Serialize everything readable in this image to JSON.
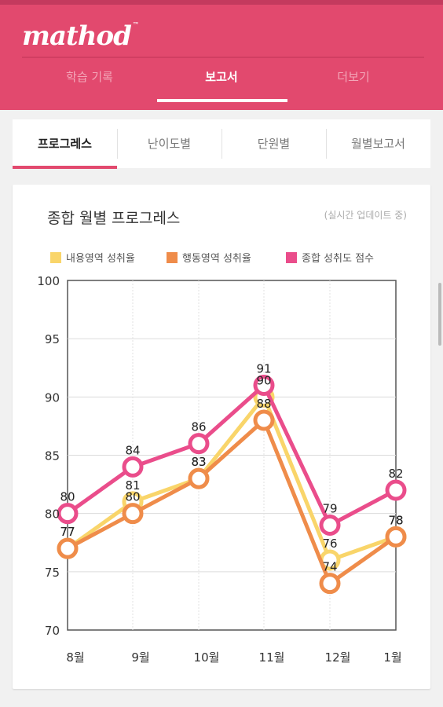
{
  "app": {
    "logo": "mathod",
    "logo_mark": "™"
  },
  "main_tabs": [
    {
      "label": "학습 기록",
      "active": false
    },
    {
      "label": "보고서",
      "active": true
    },
    {
      "label": "더보기",
      "active": false
    }
  ],
  "sub_tabs": [
    {
      "label": "프로그레스",
      "active": true
    },
    {
      "label": "난이도별",
      "active": false
    },
    {
      "label": "단원별",
      "active": false
    },
    {
      "label": "월별보고서",
      "active": false
    }
  ],
  "card": {
    "title": "종합 월별 프로그레스",
    "note": "(실시간 업데이트 중)"
  },
  "colors": {
    "header": "#e2496e",
    "yellow": "#f9d56a",
    "orange": "#ef8c4a",
    "pink": "#ea4d8b"
  },
  "chart_data": {
    "type": "line",
    "categories": [
      "8월",
      "9월",
      "10월",
      "11월",
      "12월",
      "1월"
    ],
    "ylim": [
      70,
      100
    ],
    "yticks": [
      70,
      75,
      80,
      85,
      90,
      95,
      100
    ],
    "grid": true,
    "legend_position": "top",
    "series": [
      {
        "name": "내용영역 성취율",
        "color": "#f9d56a",
        "values": [
          77,
          81,
          83,
          90,
          76,
          78
        ]
      },
      {
        "name": "행동영역 성취율",
        "color": "#ef8c4a",
        "values": [
          77,
          80,
          83,
          88,
          74,
          78
        ]
      },
      {
        "name": "종합 성취도 점수",
        "color": "#ea4d8b",
        "values": [
          80,
          84,
          86,
          91,
          79,
          82
        ]
      }
    ]
  }
}
